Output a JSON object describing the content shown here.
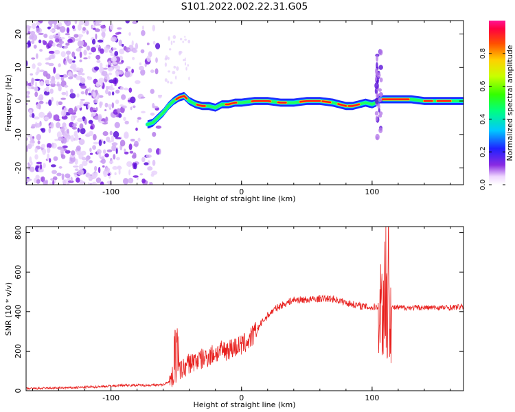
{
  "title": "S101.2022.002.22.31.G05",
  "chart_data": [
    {
      "type": "heatmap",
      "xlabel": "Height of straight line (km)",
      "ylabel": "Frequency (Hz)",
      "xlim": [
        -165,
        170
      ],
      "ylim": [
        -25,
        24
      ],
      "xticks": [
        -100,
        0,
        100
      ],
      "yticks": [
        -20,
        -10,
        0,
        10,
        20
      ],
      "ridge": {
        "x": [
          -72,
          -68,
          -64,
          -60,
          -56,
          -52,
          -48,
          -44,
          -40,
          -35,
          -30,
          -25,
          -20,
          -15,
          -10,
          -5,
          0,
          10,
          20,
          30,
          40,
          50,
          60,
          70,
          80,
          85,
          90,
          95,
          100,
          103,
          106,
          110,
          120,
          130,
          140,
          150,
          160,
          170
        ],
        "y": [
          -7,
          -6.5,
          -5,
          -3.5,
          -1.5,
          0,
          1,
          1.5,
          0,
          -1,
          -1.5,
          -1.5,
          -2,
          -1,
          -1,
          -0.5,
          -0.5,
          0,
          0,
          -0.5,
          -0.5,
          0,
          0,
          -0.5,
          -1.5,
          -1.5,
          -1,
          -0.5,
          -1,
          -0.5,
          0.5,
          0.5,
          0.5,
          0.5,
          0,
          0,
          0,
          0
        ]
      },
      "colorbar": {
        "label": "Normalized spectral amplitude",
        "ticks": [
          "0.0",
          "0.2",
          "0.4",
          "0.6",
          "0.8"
        ],
        "range": [
          0,
          1
        ]
      }
    },
    {
      "type": "line",
      "xlabel": "Height of straight line (km)",
      "ylabel": "SNR (10 * v/v)",
      "xlim": [
        -165,
        170
      ],
      "ylim": [
        0,
        830
      ],
      "xticks": [
        -100,
        0,
        100
      ],
      "yticks": [
        0,
        200,
        400,
        600,
        800
      ],
      "color": "#e8201e",
      "series": [
        {
          "x": [
            -165,
            -150,
            -130,
            -110,
            -90,
            -80,
            -70,
            -60,
            -55,
            -50,
            -45,
            -40,
            -35,
            -30,
            -25,
            -20,
            -15,
            -10,
            -5,
            0,
            5,
            10,
            15,
            20,
            25,
            30,
            35,
            40,
            50,
            60,
            70,
            80,
            90,
            100,
            105,
            110,
            115,
            120,
            130,
            140,
            150,
            160,
            170
          ],
          "y": [
            10,
            12,
            15,
            20,
            28,
            28,
            28,
            30,
            50,
            90,
            110,
            140,
            150,
            160,
            175,
            190,
            200,
            210,
            220,
            230,
            250,
            290,
            340,
            380,
            410,
            430,
            445,
            460,
            460,
            465,
            465,
            445,
            430,
            420,
            430,
            420,
            420,
            420,
            420,
            420,
            420,
            420,
            425
          ]
        }
      ]
    }
  ]
}
